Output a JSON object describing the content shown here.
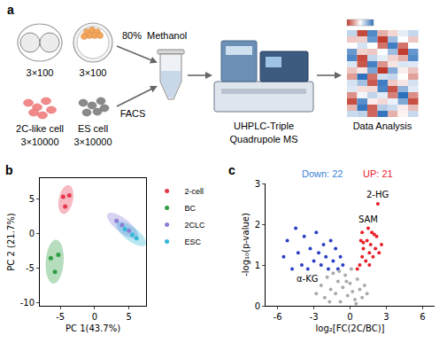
{
  "diagram": {
    "panel": "a",
    "embryo_counts": [
      "3×100",
      "3×100"
    ],
    "cells": [
      {
        "label": "2C-like cell",
        "count": "3×10000"
      },
      {
        "label": "ES cell",
        "count": "3×10000"
      }
    ],
    "extraction": {
      "solvent": "80%",
      "solvent_name": "Methanol",
      "sorting": "FACS"
    },
    "instrument": [
      "UHPLC-Triple",
      "Quadrupole MS"
    ],
    "analysis": "Data Analysis"
  },
  "chart_data": [
    {
      "panel": "b",
      "type": "scatter",
      "x_label": "PC 1(43.7%)",
      "y_label": "PC 2 (21.7%)",
      "xlim": [
        -8,
        7.5
      ],
      "ylim": [
        -10.5,
        8
      ],
      "xticks": [
        -5,
        0,
        5
      ],
      "yticks": [
        -10,
        -5,
        0,
        5
      ],
      "grid": false,
      "legend": "right",
      "marker": "circle",
      "series": [
        {
          "name": "2-cell",
          "color": "#e8384f",
          "x": [
            -4.6,
            -3.7,
            -4.3
          ],
          "y": [
            5.3,
            5.5,
            3.9
          ]
        },
        {
          "name": "BC",
          "color": "#2e9e44",
          "x": [
            -6.4,
            -5.3,
            -5.8
          ],
          "y": [
            -3.6,
            -3.1,
            -5.6
          ]
        },
        {
          "name": "2CLC",
          "color": "#8a7fd6",
          "x": [
            3.2,
            4.0,
            5.0
          ],
          "y": [
            1.8,
            1.2,
            0.4
          ]
        },
        {
          "name": "ESC",
          "color": "#35b8d8",
          "x": [
            4.4,
            5.5,
            6.1
          ],
          "y": [
            0.6,
            -0.2,
            -0.7
          ]
        }
      ]
    },
    {
      "panel": "c",
      "type": "scatter",
      "x_label": "log₂[FC(2C/BC)]",
      "y_label": "-log₁₀(p-value)",
      "xlim": [
        -7,
        7
      ],
      "ylim": [
        0,
        3
      ],
      "xticks": [
        -6,
        -3,
        0,
        3,
        6
      ],
      "yticks": [
        0,
        1,
        2,
        3
      ],
      "grid": false,
      "marker": "circle",
      "count_labels": [
        {
          "text": "Down: 22",
          "color": "#3b82d6"
        },
        {
          "text": "UP: 21",
          "color": "#e8202a"
        }
      ],
      "series": [
        {
          "color": "#2a3fc4",
          "x": [
            -5.5,
            -5.2,
            -4.8,
            -4.5,
            -4.3,
            -4.0,
            -3.8,
            -3.5,
            -3.3,
            -3.0,
            -2.8,
            -2.6,
            -2.4,
            -2.2,
            -2.0,
            -1.8,
            -1.6,
            -1.4,
            -1.2,
            -1.0,
            -0.8,
            -0.6
          ],
          "y": [
            1.2,
            1.6,
            0.9,
            1.9,
            1.3,
            1.0,
            1.7,
            0.9,
            1.4,
            1.1,
            1.8,
            1.3,
            1.0,
            1.5,
            1.2,
            0.9,
            1.6,
            1.1,
            1.4,
            0.9,
            1.2,
            1.0
          ]
        },
        {
          "color": "#e8202a",
          "x": [
            0.6,
            0.8,
            1.0,
            1.1,
            1.3,
            1.4,
            1.5,
            1.6,
            1.7,
            1.8,
            1.9,
            2.0,
            2.1,
            2.2,
            2.3,
            2.4,
            0.9,
            1.1,
            1.6,
            2.6,
            1.0
          ],
          "y": [
            0.9,
            1.0,
            1.2,
            1.4,
            1.1,
            1.6,
            1.9,
            1.3,
            1.5,
            1.8,
            1.2,
            1.75,
            1.4,
            1.7,
            2.5,
            1.3,
            1.6,
            1.55,
            1.0,
            1.5,
            1.8
          ]
        },
        {
          "color": "#aaaaaa",
          "x": [
            -2.4,
            -2.1,
            -1.9,
            -1.6,
            -1.4,
            -1.2,
            -1.0,
            -0.8,
            -0.6,
            -0.4,
            -0.2,
            0,
            0.2,
            0.4,
            0.6,
            0.8,
            1.0,
            1.2,
            1.4,
            -1.7,
            -0.9,
            0.1,
            0.5,
            -2.8,
            -0.3
          ],
          "y": [
            0.5,
            0.2,
            0.7,
            0.4,
            0.8,
            0.3,
            0.6,
            0.1,
            0.45,
            0.75,
            0.25,
            0.55,
            0.35,
            0.15,
            0.65,
            0.4,
            0.2,
            0.5,
            0.3,
            0.1,
            0.85,
            0.9,
            0.05,
            0.3,
            0.6
          ]
        }
      ],
      "annotations": [
        {
          "text": "2-HG",
          "x": 2.3,
          "y": 2.5
        },
        {
          "text": "SAM",
          "x": 1.5,
          "y": 1.9
        },
        {
          "text": "α-KG",
          "x": -3.5,
          "y": 0.9
        }
      ]
    }
  ]
}
